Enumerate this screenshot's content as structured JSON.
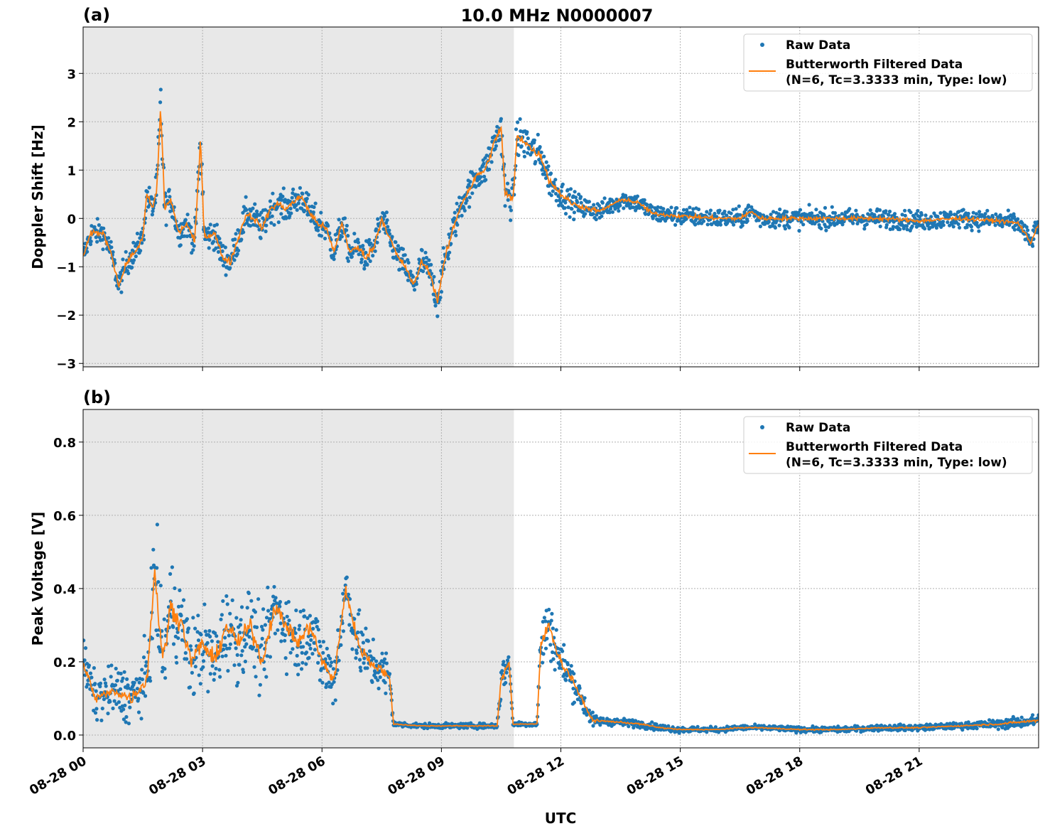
{
  "chart_data": {
    "title": "10.0 MHz N0000007",
    "xlabel": "UTC",
    "x_tick_labels": [
      "08-28 00",
      "08-28 03",
      "08-28 06",
      "08-28 09",
      "08-28 12",
      "08-28 15",
      "08-28 18",
      "08-28 21"
    ],
    "x_tick_hours": [
      0,
      3,
      6,
      9,
      12,
      15,
      18,
      21
    ],
    "xlim_hours": [
      0,
      24
    ],
    "shaded_region_hours": [
      0,
      10.82
    ],
    "colors": {
      "raw": "#1f77b4",
      "filtered": "#ff7f0e",
      "shade": "#e8e8e8"
    },
    "grid": true,
    "legend_placement": "top-right",
    "panels": [
      {
        "type": "scatter+line",
        "label": "(a)",
        "ylabel": "Doppler Shift [Hz]",
        "ylim": [
          -3.07,
          3.96
        ],
        "yticks": [
          -3,
          -2,
          -1,
          0,
          1,
          2,
          3
        ],
        "ytick_labels": [
          "−3",
          "−2",
          "−1",
          "0",
          "1",
          "2",
          "3"
        ],
        "legend": [
          "Raw Data",
          "Butterworth Filtered Data",
          "(N=6, Tc=3.3333 min, Type: low)"
        ],
        "filtered": {
          "x": [
            0,
            0.2,
            0.5,
            0.7,
            0.9,
            1.1,
            1.3,
            1.5,
            1.6,
            1.75,
            1.85,
            1.95,
            2.05,
            2.2,
            2.4,
            2.6,
            2.8,
            2.95,
            3.05,
            3.3,
            3.5,
            3.7,
            3.9,
            4.1,
            4.3,
            4.5,
            4.7,
            4.9,
            5.1,
            5.3,
            5.5,
            5.7,
            5.9,
            6.1,
            6.3,
            6.5,
            6.7,
            6.9,
            7.1,
            7.3,
            7.5,
            7.7,
            7.9,
            8.1,
            8.3,
            8.5,
            8.7,
            8.9,
            9.1,
            9.3,
            9.5,
            9.7,
            9.9,
            10.1,
            10.3,
            10.5,
            10.6,
            10.8,
            10.9,
            11.1,
            11.3,
            11.5,
            11.7,
            12.0,
            12.3,
            12.7,
            13.0,
            13.3,
            13.6,
            14.0,
            14.3,
            15,
            16,
            16.5,
            16.8,
            17,
            18,
            19,
            20,
            21,
            22,
            23,
            23.5,
            23.8,
            24
          ],
          "y": [
            -0.8,
            -0.3,
            -0.3,
            -0.7,
            -1.4,
            -0.9,
            -0.7,
            -0.4,
            0.5,
            0.2,
            0.6,
            2.3,
            0.2,
            0.4,
            -0.3,
            -0.1,
            -0.5,
            1.6,
            -0.4,
            -0.3,
            -0.8,
            -0.9,
            -0.4,
            0.1,
            0.0,
            -0.2,
            0.2,
            0.3,
            0.2,
            0.35,
            0.45,
            0.1,
            -0.1,
            -0.2,
            -0.7,
            -0.1,
            -0.7,
            -0.6,
            -0.8,
            -0.6,
            0.0,
            -0.4,
            -0.8,
            -1.0,
            -1.4,
            -0.9,
            -1.1,
            -1.7,
            -0.8,
            -0.2,
            0.3,
            0.6,
            0.9,
            1.0,
            1.5,
            1.9,
            0.5,
            0.4,
            1.7,
            1.6,
            1.4,
            1.3,
            0.8,
            0.5,
            0.3,
            0.2,
            0.15,
            0.3,
            0.4,
            0.3,
            0.1,
            0.05,
            0.0,
            0.0,
            0.15,
            0.0,
            0.0,
            0.0,
            0.0,
            -0.05,
            0.0,
            -0.05,
            -0.1,
            -0.5,
            -0.1
          ]
        },
        "raw_spread": {
          "x": [
            0,
            1.8,
            1.95,
            2.1,
            2.9,
            2.95,
            3.1,
            8,
            9,
            10,
            10.5,
            11,
            12,
            13,
            24
          ],
          "y": [
            0.45,
            0.5,
            1.2,
            0.5,
            0.5,
            1.4,
            0.55,
            0.55,
            0.6,
            0.55,
            0.7,
            0.75,
            0.5,
            0.35,
            0.35
          ]
        }
      },
      {
        "type": "scatter+line",
        "label": "(b)",
        "ylabel": "Peak Voltage [V]",
        "ylim": [
          -0.035,
          0.889
        ],
        "yticks": [
          0,
          0.2,
          0.4,
          0.6,
          0.8
        ],
        "ytick_labels": [
          "0.0",
          "0.2",
          "0.4",
          "0.6",
          "0.8"
        ],
        "legend": [
          "Raw Data",
          "Butterworth Filtered Data",
          "(N=6, Tc=3.3333 min, Type: low)"
        ],
        "filtered": {
          "x": [
            0,
            0.3,
            0.8,
            1.2,
            1.6,
            1.8,
            2.0,
            2.2,
            2.5,
            2.7,
            3.0,
            3.3,
            3.6,
            3.9,
            4.2,
            4.5,
            4.8,
            5.1,
            5.4,
            5.7,
            6.0,
            6.3,
            6.6,
            6.9,
            7.2,
            7.5,
            7.7,
            7.8,
            8.5,
            9.5,
            10.4,
            10.5,
            10.7,
            10.8,
            11.2,
            11.4,
            11.5,
            11.7,
            12.0,
            12.3,
            12.6,
            12.8,
            13.5,
            14,
            14.5,
            15,
            16,
            16.5,
            17,
            18,
            19,
            20,
            21,
            22,
            23,
            24
          ],
          "y": [
            0.2,
            0.1,
            0.12,
            0.1,
            0.15,
            0.45,
            0.2,
            0.35,
            0.3,
            0.2,
            0.25,
            0.2,
            0.3,
            0.25,
            0.3,
            0.2,
            0.35,
            0.3,
            0.25,
            0.3,
            0.2,
            0.15,
            0.4,
            0.25,
            0.2,
            0.18,
            0.15,
            0.03,
            0.025,
            0.025,
            0.025,
            0.15,
            0.2,
            0.03,
            0.03,
            0.03,
            0.25,
            0.3,
            0.2,
            0.15,
            0.08,
            0.04,
            0.035,
            0.03,
            0.02,
            0.015,
            0.015,
            0.02,
            0.02,
            0.015,
            0.015,
            0.02,
            0.02,
            0.025,
            0.03,
            0.04
          ]
        },
        "raw_spread": {
          "x": [
            0,
            1.5,
            1.8,
            2.5,
            5,
            7,
            7.7,
            7.8,
            10.4,
            10.5,
            10.8,
            11.4,
            11.5,
            12.0,
            12.6,
            13,
            16,
            22,
            24
          ],
          "y": [
            0.1,
            0.15,
            0.25,
            0.2,
            0.18,
            0.15,
            0.12,
            0.012,
            0.012,
            0.1,
            0.012,
            0.012,
            0.15,
            0.12,
            0.05,
            0.02,
            0.012,
            0.015,
            0.03
          ]
        }
      }
    ]
  }
}
